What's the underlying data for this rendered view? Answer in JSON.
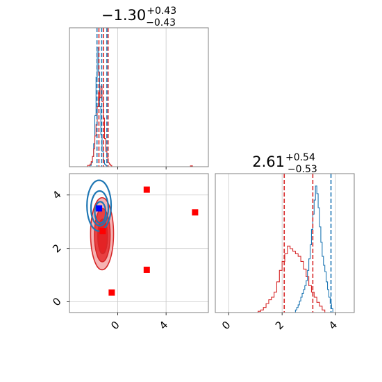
{
  "colors": {
    "blue": "#1f77b4",
    "red": "#d62728",
    "red_fill_dark": "#e31a1c",
    "red_fill_light": "#f4a6a6",
    "blue_marker": "#0000ff",
    "red_marker": "#ff0000",
    "grid": "#c8c8c8",
    "frame": "#808080"
  },
  "chart_data": [
    {
      "type": "histogram",
      "panel": "top-left",
      "title_main": "−1.30",
      "title_sup": "+0.43",
      "title_sub": "−0.43",
      "xlim": [
        -4.0,
        7.5
      ],
      "ylim": [
        0,
        1
      ],
      "x_grid": [
        0,
        4
      ],
      "quantile_lines": [
        {
          "color": "blue",
          "values": [
            -1.72,
            -1.33,
            -0.9
          ]
        },
        {
          "color": "red",
          "values": [
            -1.56,
            -1.18,
            -0.8
          ]
        }
      ],
      "series": [
        {
          "color": "blue",
          "bins_start": -2.3,
          "bin_width": 0.1,
          "values": [
            0.01,
            0.03,
            0.08,
            0.18,
            0.4,
            0.7,
            0.93,
            0.74,
            0.47,
            0.25,
            0.12,
            0.05,
            0.02,
            0.01
          ]
        },
        {
          "color": "red",
          "bins_start": -2.5,
          "bin_width": 0.1,
          "values": [
            0.01,
            0.01,
            0.02,
            0.04,
            0.08,
            0.14,
            0.24,
            0.33,
            0.47,
            0.58,
            0.54,
            0.63,
            0.51,
            0.38,
            0.22,
            0.12,
            0.07,
            0.03,
            0.02,
            0.01
          ]
        }
      ],
      "outliers": [
        {
          "x": 6.1,
          "y": 0.01,
          "color": "red"
        }
      ]
    },
    {
      "type": "histogram",
      "panel": "bottom-right",
      "title_main": "2.61",
      "title_sup": "+0.54",
      "title_sub": "−0.53",
      "xlim": [
        -0.5,
        4.7
      ],
      "ylim": [
        0,
        1
      ],
      "x_ticks": [
        0,
        2,
        4
      ],
      "x_tick_labels": [
        "0",
        "2",
        "4"
      ],
      "quantile_lines": [
        {
          "color": "red",
          "values": [
            2.08,
            3.15
          ]
        },
        {
          "color": "blue",
          "values": [
            3.83
          ]
        }
      ],
      "series": [
        {
          "color": "red",
          "bins_start": 1.1,
          "bin_width": 0.1,
          "values": [
            0.01,
            0.02,
            0.04,
            0.07,
            0.1,
            0.12,
            0.16,
            0.24,
            0.33,
            0.4,
            0.46,
            0.52,
            0.5,
            0.48,
            0.46,
            0.44,
            0.4,
            0.34,
            0.28,
            0.21,
            0.16,
            0.12,
            0.08,
            0.05,
            0.02
          ]
        },
        {
          "color": "blue",
          "bins_start": 2.5,
          "bin_width": 0.05,
          "values": [
            0.02,
            0.04,
            0.06,
            0.09,
            0.12,
            0.15,
            0.18,
            0.21,
            0.25,
            0.33,
            0.42,
            0.53,
            0.65,
            0.77,
            0.88,
            0.99,
            0.93,
            0.82,
            0.67,
            0.55,
            0.44,
            0.37,
            0.32,
            0.24,
            0.18,
            0.12,
            0.07,
            0.03
          ]
        }
      ]
    },
    {
      "type": "scatter",
      "panel": "bottom-left",
      "xlim": [
        -4.0,
        7.5
      ],
      "ylim": [
        -0.4,
        4.8
      ],
      "x_ticks": [
        0,
        4
      ],
      "x_tick_labels": [
        "0",
        "4"
      ],
      "y_ticks": [
        0,
        2,
        4
      ],
      "y_tick_labels": [
        "0",
        "2",
        "4"
      ],
      "red_contours": [
        {
          "cx": -1.3,
          "cy": 2.55,
          "rx": 0.95,
          "ry": 1.35,
          "fill": "light"
        },
        {
          "cx": -1.28,
          "cy": 2.5,
          "rx": 0.65,
          "ry": 1.0,
          "fill": "dark"
        },
        {
          "cx": -1.25,
          "cy": 2.45,
          "rx": 0.4,
          "ry": 0.65,
          "fill": "dark"
        }
      ],
      "blue_contours": [
        {
          "cx": -1.55,
          "cy": 3.6,
          "rx": 1.0,
          "ry": 0.95
        },
        {
          "cx": -1.5,
          "cy": 3.5,
          "rx": 0.72,
          "ry": 0.65
        },
        {
          "cx": -1.45,
          "cy": 3.35,
          "rx": 0.45,
          "ry": 0.4
        }
      ],
      "markers": [
        {
          "x": -1.55,
          "y": 3.5,
          "color": "blue_marker"
        },
        {
          "x": -1.25,
          "y": 2.65,
          "color": "red_marker"
        },
        {
          "x": 2.4,
          "y": 4.2,
          "color": "red_marker"
        },
        {
          "x": 6.4,
          "y": 3.35,
          "color": "red_marker"
        },
        {
          "x": 2.4,
          "y": 1.2,
          "color": "red_marker"
        },
        {
          "x": -0.5,
          "y": 0.35,
          "color": "red_marker"
        }
      ]
    }
  ]
}
